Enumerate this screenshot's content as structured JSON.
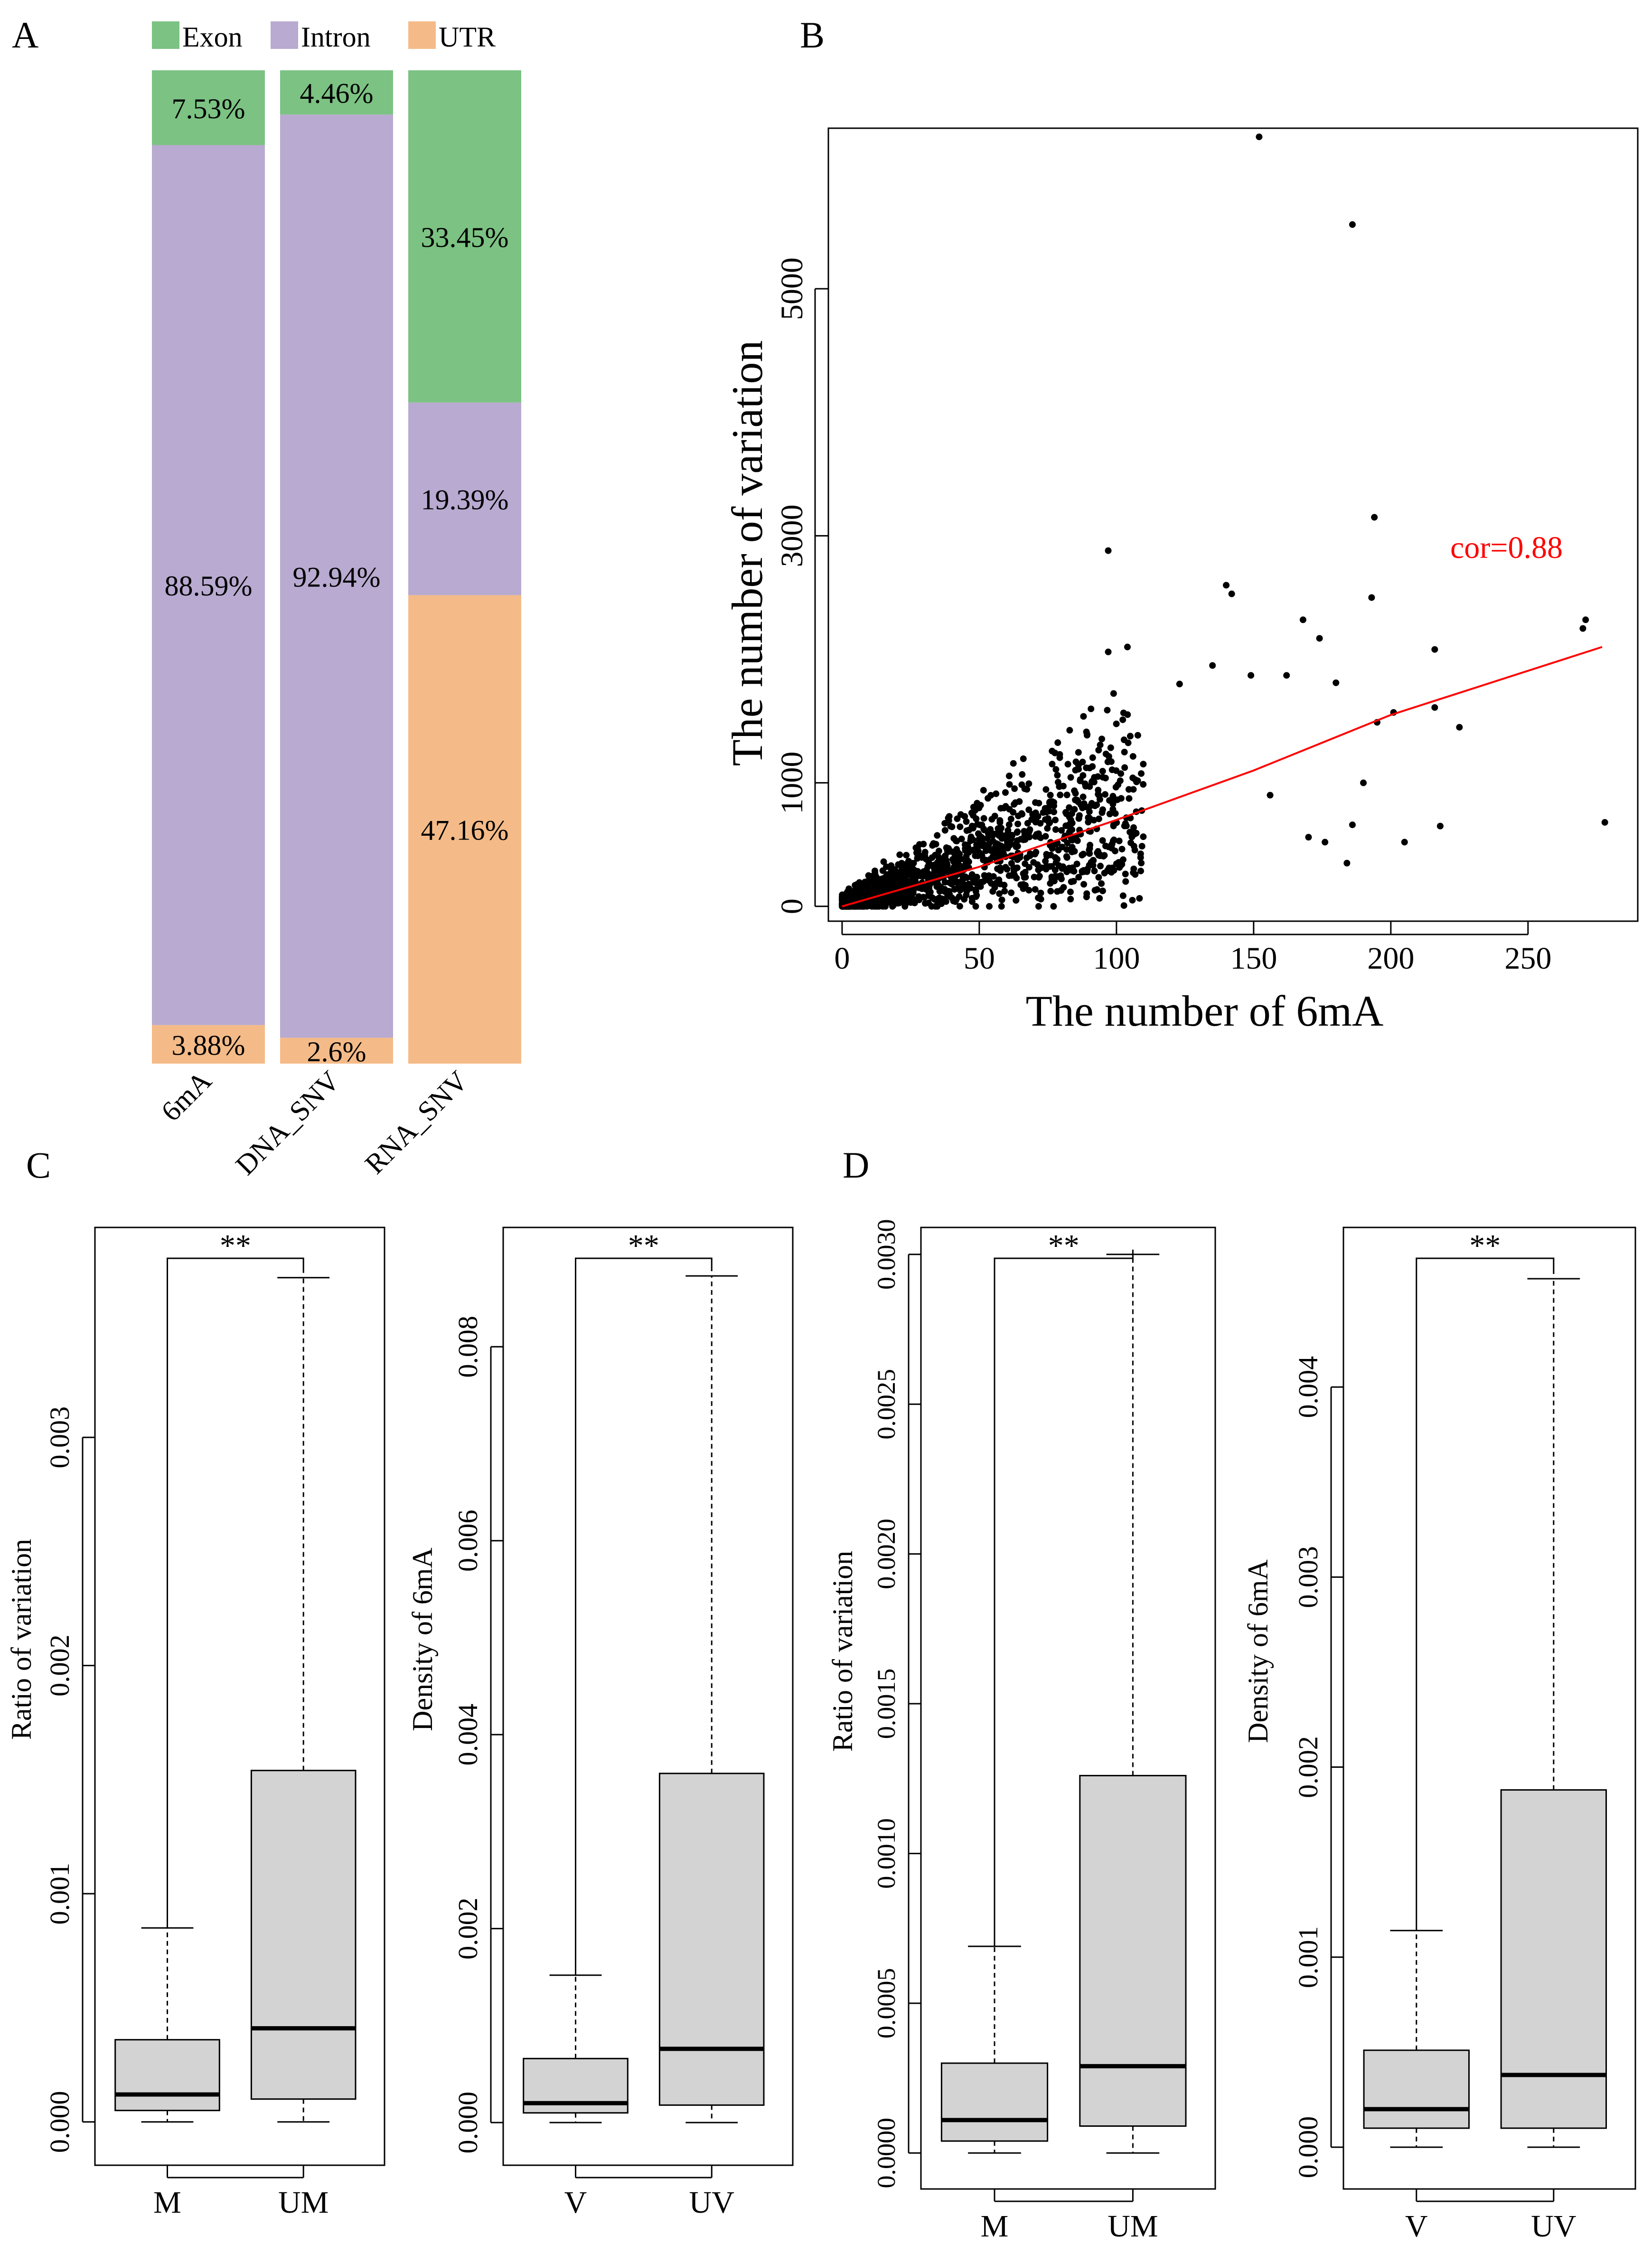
{
  "panels": {
    "A": {
      "label": "A",
      "chart_data": {
        "type": "bar",
        "stacked": true,
        "percent": true,
        "categories": [
          "6mA",
          "DNA_SNV",
          "RNA_SNV"
        ],
        "series": [
          {
            "name": "Exon",
            "color": "#7cc283",
            "values": [
              7.53,
              4.46,
              33.45
            ],
            "labels": [
              "7.53%",
              "4.46%",
              "33.45%"
            ]
          },
          {
            "name": "Intron",
            "color": "#b8aad0",
            "values": [
              88.59,
              92.94,
              19.39
            ],
            "labels": [
              "88.59%",
              "92.94%",
              "19.39%"
            ]
          },
          {
            "name": "UTR",
            "color": "#f4bb88",
            "values": [
              3.88,
              2.6,
              47.16
            ],
            "labels": [
              "3.88%",
              "2.6%",
              "47.16%"
            ]
          }
        ],
        "legend_position": "top"
      }
    },
    "B": {
      "label": "B",
      "chart_data": {
        "type": "scatter",
        "xlabel": "The number of 6mA",
        "ylabel": "The number of variation",
        "xlim": [
          -5,
          290
        ],
        "ylim": [
          -120,
          6300
        ],
        "xticks": [
          0,
          50,
          100,
          150,
          200,
          250
        ],
        "yticks": [
          0,
          1000,
          3000,
          5000
        ],
        "annotation": {
          "text": "cor=0.88",
          "color": "#ff0000"
        },
        "trend": {
          "color": "#ff0000",
          "points": [
            [
              0,
              0
            ],
            [
              50,
              320
            ],
            [
              100,
              700
            ],
            [
              150,
              1100
            ],
            [
              200,
              1550
            ],
            [
              277,
              2100
            ]
          ]
        },
        "outliers": [
          [
            152,
            6230
          ],
          [
            186,
            5520
          ],
          [
            194,
            3150
          ],
          [
            97,
            2880
          ],
          [
            140,
            2600
          ],
          [
            142,
            2530
          ],
          [
            193,
            2500
          ],
          [
            271,
            2320
          ],
          [
            168,
            2320
          ],
          [
            174,
            2170
          ],
          [
            270,
            2250
          ],
          [
            216,
            2080
          ],
          [
            135,
            1950
          ],
          [
            97,
            2060
          ],
          [
            104,
            2100
          ],
          [
            149,
            1870
          ],
          [
            162,
            1870
          ],
          [
            180,
            1810
          ],
          [
            123,
            1800
          ],
          [
            195,
            1490
          ],
          [
            201,
            1570
          ],
          [
            225,
            1450
          ],
          [
            216,
            1610
          ],
          [
            278,
            680
          ],
          [
            186,
            660
          ],
          [
            205,
            520
          ],
          [
            218,
            650
          ],
          [
            170,
            560
          ],
          [
            184,
            350
          ],
          [
            176,
            520
          ],
          [
            190,
            1000
          ],
          [
            156,
            900
          ]
        ],
        "grid": false
      }
    },
    "C": {
      "label": "C",
      "plots": [
        {
          "chart_data": {
            "type": "box",
            "ylabel": "Ratio of variation",
            "categories": [
              "M",
              "UM"
            ],
            "ylim": [
              -0.00019,
              0.00392
            ],
            "yticks": [
              0.0,
              0.001,
              0.002,
              0.003
            ],
            "ytick_labels": [
              "0.000",
              "0.001",
              "0.002",
              "0.003"
            ],
            "boxes": [
              {
                "min": 0.0,
                "q1": 5e-05,
                "median": 0.00012,
                "q3": 0.00036,
                "max": 0.00085
              },
              {
                "min": 0.0,
                "q1": 0.0001,
                "median": 0.00041,
                "q3": 0.00154,
                "max": 0.0037
              }
            ],
            "significance": "**"
          }
        },
        {
          "chart_data": {
            "type": "box",
            "ylabel": "Density of 6mA",
            "categories": [
              "V",
              "UV"
            ],
            "ylim": [
              -0.00044,
              0.00923
            ],
            "yticks": [
              0.0,
              0.002,
              0.004,
              0.006,
              0.008
            ],
            "ytick_labels": [
              "0.000",
              "0.002",
              "0.004",
              "0.006",
              "0.008"
            ],
            "boxes": [
              {
                "min": 0.0,
                "q1": 0.0001,
                "median": 0.0002,
                "q3": 0.00066,
                "max": 0.00152
              },
              {
                "min": 0.0,
                "q1": 0.00018,
                "median": 0.00076,
                "q3": 0.0036,
                "max": 0.00873
              }
            ],
            "significance": "**"
          }
        }
      ]
    },
    "D": {
      "label": "D",
      "plots": [
        {
          "chart_data": {
            "type": "box",
            "ylabel": "Ratio of variation",
            "categories": [
              "M",
              "UM"
            ],
            "ylim": [
              -0.00012,
              0.00309
            ],
            "yticks": [
              0.0,
              0.0005,
              0.001,
              0.0015,
              0.002,
              0.0025,
              0.003
            ],
            "ytick_labels": [
              "0.0000",
              "0.0005",
              "0.0010",
              "0.0015",
              "0.0020",
              "0.0025",
              "0.0030"
            ],
            "boxes": [
              {
                "min": 0.0,
                "q1": 4e-05,
                "median": 0.00011,
                "q3": 0.0003,
                "max": 0.00069
              },
              {
                "min": 0.0,
                "q1": 9e-05,
                "median": 0.00029,
                "q3": 0.00126,
                "max": 0.003
              }
            ],
            "significance": "**"
          }
        },
        {
          "chart_data": {
            "type": "box",
            "ylabel": "Density of 6mA",
            "categories": [
              "V",
              "UV"
            ],
            "ylim": [
              -0.00022,
              0.00484
            ],
            "yticks": [
              0.0,
              0.001,
              0.002,
              0.003,
              0.004
            ],
            "ytick_labels": [
              "0.000",
              "0.001",
              "0.002",
              "0.003",
              "0.004"
            ],
            "boxes": [
              {
                "min": 0.0,
                "q1": 0.0001,
                "median": 0.0002,
                "q3": 0.00051,
                "max": 0.00114
              },
              {
                "min": 0.0,
                "q1": 0.0001,
                "median": 0.00038,
                "q3": 0.00188,
                "max": 0.00457
              }
            ],
            "significance": "**"
          }
        }
      ]
    }
  },
  "colors": {
    "box_fill": "#d3d3d3",
    "red": "#ff0000"
  }
}
